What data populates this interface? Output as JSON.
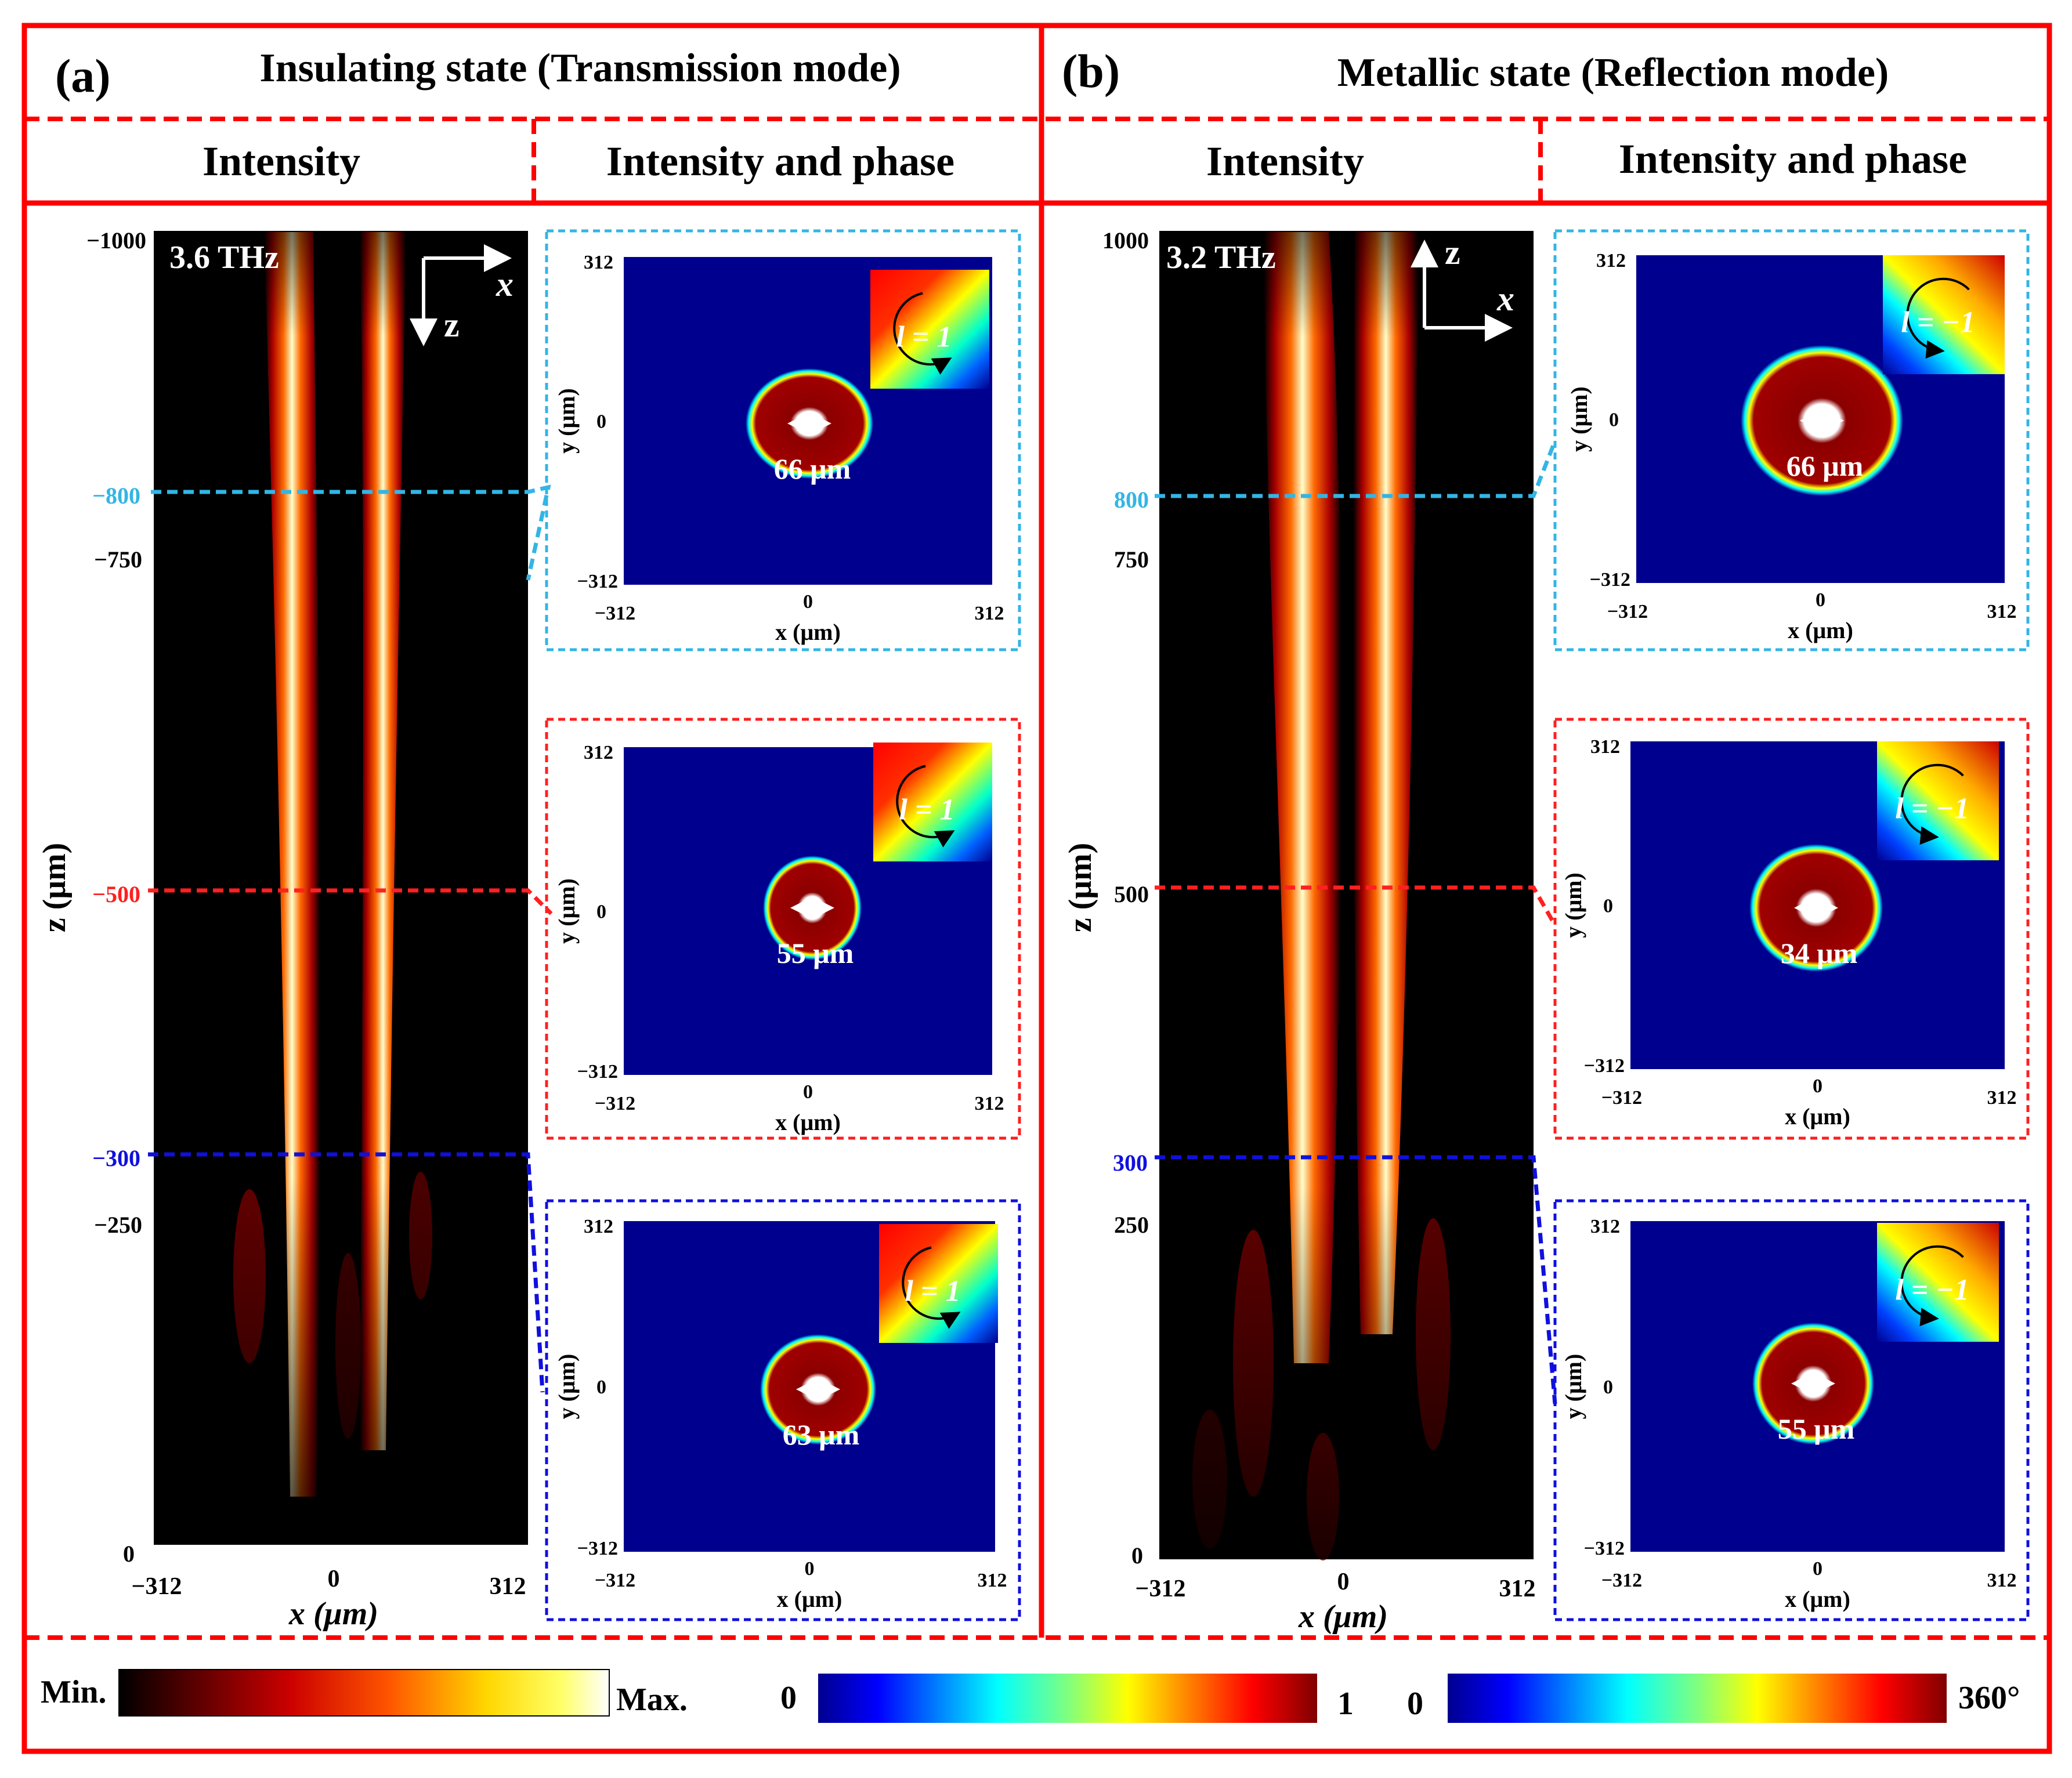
{
  "colors": {
    "frame": "#ff0000",
    "cyan": "#33b5e5",
    "red": "#ff2020",
    "blue": "#1010dd",
    "field": "#00008f",
    "ring": "#8b0000"
  },
  "panels": {
    "a": {
      "label": "(a)",
      "title": "Insulating state (Transmission mode)",
      "col_intensity": "Intensity",
      "col_phase": "Intensity and phase",
      "freq": "3.6 THz",
      "axis_arrow_x": "x",
      "axis_arrow_z": "z",
      "z_ticks": [
        "−1000",
        "−800",
        "−750",
        "−500",
        "−300",
        "−250",
        "0"
      ],
      "x_ticks": [
        "−312",
        "0",
        "312"
      ],
      "z_label": "z (μm)",
      "x_label": "x (μm)",
      "insets": [
        {
          "ymax": "312",
          "y0": "0",
          "ymin": "−312",
          "xmin": "−312",
          "x0": "0",
          "xmax": "312",
          "ylabel": "y (μm)",
          "xlabel": "x (μm)",
          "size": "66 μm",
          "l": "l = 1"
        },
        {
          "ymax": "312",
          "y0": "0",
          "ymin": "−312",
          "xmin": "−312",
          "x0": "0",
          "xmax": "312",
          "ylabel": "y (μm)",
          "xlabel": "x (μm)",
          "size": "55 μm",
          "l": "l = 1"
        },
        {
          "ymax": "312",
          "y0": "0",
          "ymin": "−312",
          "xmin": "−312",
          "x0": "0",
          "xmax": "312",
          "ylabel": "y (μm)",
          "xlabel": "x (μm)",
          "size": "63 μm",
          "l": "l = 1"
        }
      ]
    },
    "b": {
      "label": "(b)",
      "title": "Metallic state (Reflection mode)",
      "col_intensity": "Intensity",
      "col_phase": "Intensity and phase",
      "freq": "3.2 THz",
      "axis_arrow_x": "x",
      "axis_arrow_z": "z",
      "z_ticks": [
        "1000",
        "800",
        "750",
        "500",
        "300",
        "250",
        "0"
      ],
      "x_ticks": [
        "−312",
        "0",
        "312"
      ],
      "z_label": "z (μm)",
      "x_label": "x (μm)",
      "insets": [
        {
          "ymax": "312",
          "y0": "0",
          "ymin": "−312",
          "xmin": "−312",
          "x0": "0",
          "xmax": "312",
          "ylabel": "y (μm)",
          "xlabel": "x (μm)",
          "size": "66 μm",
          "l": "l = −1"
        },
        {
          "ymax": "312",
          "y0": "0",
          "ymin": "−312",
          "xmin": "−312",
          "x0": "0",
          "xmax": "312",
          "ylabel": "y (μm)",
          "xlabel": "x (μm)",
          "size": "34 μm",
          "l": "l = −1"
        },
        {
          "ymax": "312",
          "y0": "0",
          "ymin": "−312",
          "xmin": "−312",
          "x0": "0",
          "xmax": "312",
          "ylabel": "y (μm)",
          "xlabel": "x (μm)",
          "size": "55 μm",
          "l": "l = −1"
        }
      ]
    }
  },
  "colorbars": {
    "intensity_min": "Min.",
    "intensity_max": "Max.",
    "amp_min": "0",
    "amp_max": "1",
    "phase_min": "0",
    "phase_max": "360°"
  }
}
